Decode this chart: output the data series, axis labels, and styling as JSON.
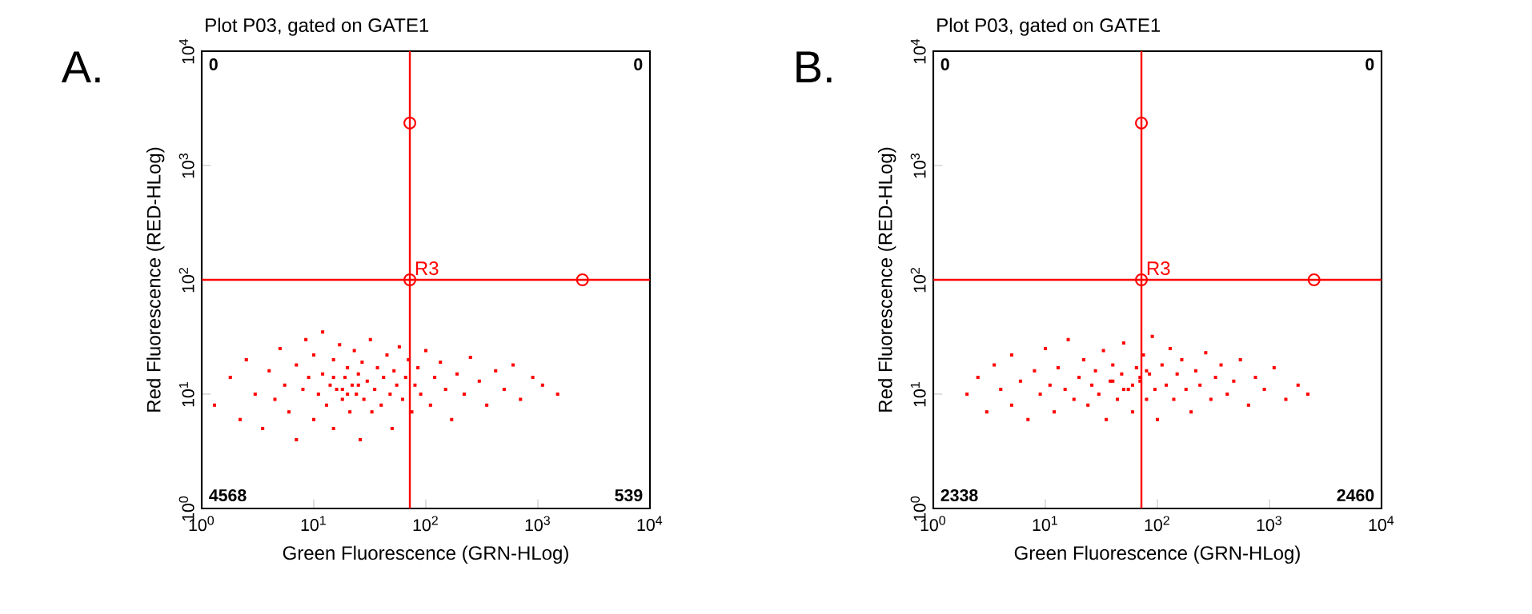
{
  "chart_data": [
    {
      "type": "scatter",
      "title": "Plot P03, gated on GATE1",
      "xlabel": "Green Fluorescence (GRN-HLog)",
      "ylabel": "Red Fluorescence (RED-HLog)",
      "log": "xy",
      "marker": "square",
      "grid": false,
      "xlim": [
        1,
        10000
      ],
      "ylim": [
        1,
        10000
      ],
      "xticks": [
        {
          "value": 1,
          "label": "10$^{0}$"
        },
        {
          "value": 10,
          "label": "10$^{1}$"
        },
        {
          "value": 100,
          "label": "10$^{2}$"
        },
        {
          "value": 1000,
          "label": "10$^{3}$"
        },
        {
          "value": 10000,
          "label": "10$^{4}$"
        }
      ],
      "yticks": [
        {
          "value": 1,
          "label": "10$^{0}$"
        },
        {
          "value": 10,
          "label": "10$^{1}$"
        },
        {
          "value": 100,
          "label": "10$^{2}$"
        },
        {
          "value": 1000,
          "label": "10$^{3}$"
        },
        {
          "value": 10000,
          "label": "10$^{4}$"
        }
      ],
      "ref_lines": [
        {
          "axis": "x",
          "value": 72,
          "color": "#ff0000"
        },
        {
          "axis": "y",
          "value": 100,
          "color": "#ff0000"
        }
      ],
      "annotations": [
        "A.",
        "0",
        "0",
        "4568",
        "539",
        {
          "text": "R3",
          "x": 72,
          "y": 100
        }
      ],
      "series": [
        {
          "color": "#ff0000",
          "x": [
            1.3,
            1.8,
            2.2,
            2.5,
            3,
            3.5,
            4,
            4.5,
            5,
            5.5,
            6,
            7,
            7,
            8,
            8.5,
            9,
            10,
            10,
            11,
            12,
            12,
            13,
            14,
            15,
            15,
            16,
            17,
            18,
            19,
            20,
            21,
            22,
            23,
            24,
            25,
            26,
            27,
            28,
            30,
            32,
            33,
            35,
            37,
            40,
            42,
            45,
            48,
            50,
            52,
            55,
            58,
            62,
            66,
            70,
            75,
            80,
            85,
            90,
            100,
            110,
            120,
            135,
            150,
            170,
            190,
            220,
            250,
            300,
            350,
            420,
            500,
            600,
            700,
            900,
            1100,
            1500,
            15,
            18,
            20,
            25
          ],
          "values": [
            8,
            14,
            6,
            20,
            10,
            5,
            16,
            9,
            25,
            12,
            7,
            18,
            4,
            11,
            30,
            14,
            6,
            22,
            10,
            15,
            35,
            8,
            12,
            20,
            5,
            11,
            27,
            9,
            14,
            17,
            7,
            12,
            24,
            10,
            15,
            4,
            19,
            9,
            13,
            30,
            7,
            11,
            17,
            8,
            14,
            22,
            10,
            5,
            16,
            12,
            26,
            9,
            14,
            20,
            7,
            12,
            17,
            10,
            24,
            8,
            14,
            19,
            11,
            6,
            15,
            10,
            21,
            13,
            8,
            16,
            11,
            18,
            9,
            14,
            12,
            10,
            14,
            11,
            10,
            12
          ]
        },
        {
          "color": "#ff0000",
          "marker": "circle",
          "x": [
            72,
            72,
            2500
          ],
          "values": [
            2350,
            100,
            100
          ]
        }
      ]
    },
    {
      "type": "scatter",
      "title": "Plot P03, gated on GATE1",
      "xlabel": "Green Fluorescence (GRN-HLog)",
      "ylabel": "Red Fluorescence (RED-HLog)",
      "log": "xy",
      "marker": "square",
      "grid": false,
      "xlim": [
        1,
        10000
      ],
      "ylim": [
        1,
        10000
      ],
      "xticks": [
        {
          "value": 1,
          "label": "10$^{0}$"
        },
        {
          "value": 10,
          "label": "10$^{1}$"
        },
        {
          "value": 100,
          "label": "10$^{2}$"
        },
        {
          "value": 1000,
          "label": "10$^{3}$"
        },
        {
          "value": 10000,
          "label": "10$^{4}$"
        }
      ],
      "yticks": [
        {
          "value": 1,
          "label": "10$^{0}$"
        },
        {
          "value": 10,
          "label": "10$^{1}$"
        },
        {
          "value": 100,
          "label": "10$^{2}$"
        },
        {
          "value": 1000,
          "label": "10$^{3}$"
        },
        {
          "value": 10000,
          "label": "10$^{4}$"
        }
      ],
      "ref_lines": [
        {
          "axis": "x",
          "value": 72,
          "color": "#ff0000"
        },
        {
          "axis": "y",
          "value": 100,
          "color": "#ff0000"
        }
      ],
      "annotations": [
        "B.",
        "0",
        "0",
        "2338",
        "2460",
        {
          "text": "R3",
          "x": 72,
          "y": 100
        }
      ],
      "series": [
        {
          "color": "#ff0000",
          "x": [
            2,
            2.5,
            3,
            3.5,
            4,
            5,
            5,
            6,
            7,
            8,
            9,
            10,
            11,
            12,
            13,
            15,
            16,
            18,
            20,
            22,
            24,
            26,
            28,
            30,
            33,
            35,
            38,
            40,
            44,
            48,
            50,
            55,
            60,
            65,
            70,
            75,
            80,
            85,
            90,
            95,
            100,
            110,
            120,
            130,
            140,
            150,
            165,
            180,
            200,
            220,
            240,
            270,
            300,
            330,
            370,
            420,
            480,
            550,
            650,
            750,
            900,
            1100,
            1400,
            1800,
            2200,
            60,
            70,
            50,
            80,
            40
          ],
          "values": [
            10,
            14,
            7,
            18,
            11,
            8,
            22,
            13,
            6,
            16,
            10,
            25,
            12,
            7,
            17,
            11,
            30,
            9,
            14,
            20,
            8,
            12,
            16,
            10,
            24,
            6,
            13,
            18,
            9,
            15,
            28,
            11,
            7,
            17,
            13,
            22,
            9,
            15,
            32,
            11,
            6,
            18,
            12,
            25,
            9,
            15,
            20,
            11,
            7,
            16,
            12,
            23,
            9,
            14,
            18,
            10,
            13,
            20,
            8,
            14,
            11,
            17,
            9,
            12,
            10,
            12,
            14,
            11,
            16,
            13
          ]
        },
        {
          "color": "#ff0000",
          "marker": "circle",
          "x": [
            72,
            72,
            2500
          ],
          "values": [
            2350,
            100,
            100
          ]
        }
      ]
    }
  ]
}
